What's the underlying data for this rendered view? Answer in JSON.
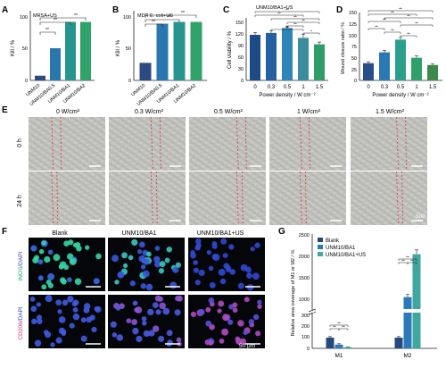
{
  "panels": {
    "A": {
      "letter": "A",
      "annot": "MRSA+US",
      "ylabel": "Kill / %",
      "yticks": [
        "0",
        "50",
        "100"
      ],
      "chart_data": {
        "type": "bar",
        "categories": [
          "UNM10",
          "UNM10/BA0.5",
          "UNM10/BA1",
          "UNM10/BA2"
        ],
        "values": [
          8,
          55,
          100,
          100
        ],
        "ylim": [
          0,
          110
        ]
      },
      "sig": [
        "**",
        "**",
        "**"
      ]
    },
    "B": {
      "letter": "B",
      "annot": "MDR E. coli+US",
      "ylabel": "Kill / %",
      "yticks": [
        "0",
        "50",
        "100"
      ],
      "chart_data": {
        "type": "bar",
        "categories": [
          "UNM10",
          "UNM10/BA0.5",
          "UNM10/BA1",
          "UNM10/BA2"
        ],
        "values": [
          30,
          97,
          100,
          100
        ],
        "ylim": [
          0,
          110
        ]
      },
      "sig": [
        "**",
        "**",
        "**"
      ]
    },
    "C": {
      "letter": "C",
      "annot": "UNM10/BA1+US",
      "ylabel": "Cell viability / %",
      "xlabel": "Power density / W cm⁻²",
      "yticks": [
        "0",
        "30",
        "60",
        "90",
        "120",
        "150"
      ],
      "chart_data": {
        "type": "bar",
        "categories": [
          "0",
          "0.3",
          "0.5",
          "1",
          "1.5"
        ],
        "values": [
          120,
          125,
          138,
          112,
          95
        ],
        "errors": [
          6,
          5,
          5,
          10,
          6
        ],
        "ylim": [
          0,
          160
        ]
      },
      "sig": [
        "**",
        "**",
        "**",
        "**",
        "**",
        "**",
        "*"
      ]
    },
    "D": {
      "letter": "D",
      "ylabel": "Wound closure ratio / %",
      "xlabel": "Power density / W cm⁻²",
      "yticks": [
        "0",
        "25",
        "50",
        "75",
        "100",
        "125",
        "150"
      ],
      "chart_data": {
        "type": "bar",
        "categories": [
          "0",
          "0.3",
          "0.5",
          "1",
          "1.5"
        ],
        "values": [
          38,
          62,
          90,
          50,
          34
        ],
        "errors": [
          3,
          4,
          5,
          4,
          3
        ],
        "ylim": [
          0,
          150
        ]
      },
      "sig": [
        "**",
        "**",
        "**",
        "**",
        "**",
        "**",
        "**",
        "**"
      ]
    },
    "E": {
      "letter": "E",
      "columns": [
        "0 W/cm²",
        "0.3 W/cm²",
        "0.5 W/cm²",
        "1 W/cm²",
        "1.5 W/cm²"
      ],
      "rows": [
        "0 h",
        "24 h"
      ],
      "scale": "500 μm"
    },
    "F": {
      "letter": "F",
      "columns": [
        "Blank",
        "UNM10/BA1",
        "UNM10/BA1+US"
      ],
      "row1": {
        "a": "iNOS",
        "b": "/DAPI"
      },
      "row2": {
        "a": "CD206",
        "b": "/DAPI"
      },
      "scale": "50 μm"
    },
    "G": {
      "letter": "G",
      "ylabel": "Relative area coverage of M1 or M2 / %",
      "legend": [
        "Blank",
        "UNM10/BA1",
        "UNM10/BA1+US"
      ],
      "yticks": [
        "0",
        "100",
        "200",
        "300",
        "1000",
        "1500",
        "2000",
        "2500"
      ],
      "chart_data": {
        "type": "bar",
        "categories": [
          "M1",
          "M2"
        ],
        "series": [
          {
            "name": "Blank",
            "values": [
              100,
              100
            ],
            "errors": [
              10,
              10
            ]
          },
          {
            "name": "UNM10/BA1",
            "values": [
              35,
              1050
            ],
            "errors": [
              8,
              70
            ]
          },
          {
            "name": "UNM10/BA1+US",
            "values": [
              10,
              2050
            ],
            "errors": [
              3,
              100
            ]
          }
        ]
      },
      "sig": [
        "**",
        "**",
        "**",
        "**",
        "**",
        "**"
      ]
    }
  },
  "colors": {
    "A": [
      "#2b4a80",
      "#2a77b0",
      "#27958f",
      "#2fa36a"
    ],
    "C": [
      "#1e4a87",
      "#2560a3",
      "#2e86b8",
      "#3a8d9f",
      "#2f9d67"
    ],
    "D": [
      "#2a4e89",
      "#2c78b4",
      "#2aa08c",
      "#2ea16b",
      "#3b8a4c"
    ],
    "G": [
      "#25497f",
      "#2c78b9",
      "#3fa7a0"
    ]
  }
}
